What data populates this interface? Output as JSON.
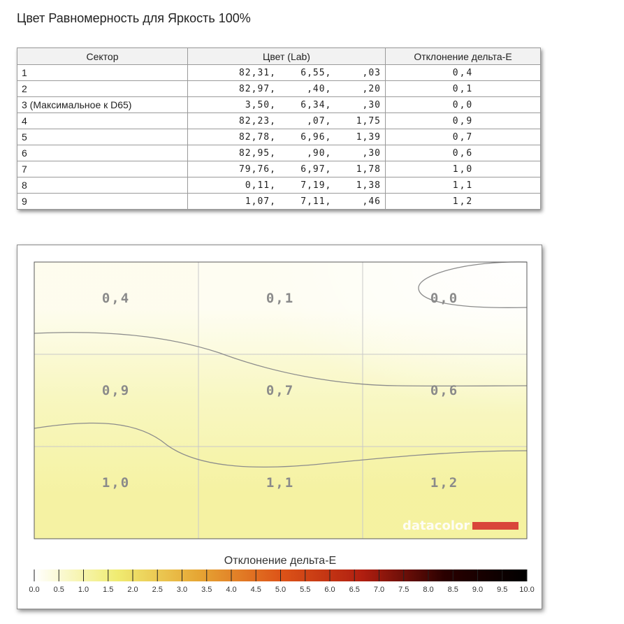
{
  "page": {
    "title": "Цвет Равномерность для Яркость 100%"
  },
  "table": {
    "headers": [
      "Сектор",
      "Цвет (Lab)",
      "Отклонение дельта-E"
    ],
    "rows": [
      {
        "sector": "1",
        "lab": "82,31,    6,55,     ,03",
        "delta_e": "0,4"
      },
      {
        "sector": "2",
        "lab": "82,97,     ,40,     ,20",
        "delta_e": "0,1"
      },
      {
        "sector": "3 (Максимальное к D65)",
        "lab": "3,50,    6,34,     ,30",
        "delta_e": "0,0"
      },
      {
        "sector": "4",
        "lab": "82,23,     ,07,    1,75",
        "delta_e": "0,9"
      },
      {
        "sector": "5",
        "lab": "82,78,    6,96,    1,39",
        "delta_e": "0,7"
      },
      {
        "sector": "6",
        "lab": "82,95,     ,90,     ,30",
        "delta_e": "0,6"
      },
      {
        "sector": "7",
        "lab": "79,76,    6,97,    1,78",
        "delta_e": "1,0"
      },
      {
        "sector": "8",
        "lab": "0,11,    7,19,    1,38",
        "delta_e": "1,1"
      },
      {
        "sector": "9",
        "lab": "1,07,    7,11,     ,46",
        "delta_e": "1,2"
      }
    ]
  },
  "chart_data": {
    "type": "heatmap",
    "grid": {
      "rows": 3,
      "cols": 3
    },
    "values": [
      [
        0.4,
        0.1,
        0.0
      ],
      [
        0.9,
        0.7,
        0.6
      ],
      [
        1.0,
        1.1,
        1.2
      ]
    ],
    "cell_labels": [
      [
        "0,4",
        "0,1",
        "0,0"
      ],
      [
        "0,9",
        "0,7",
        "0,6"
      ],
      [
        "1,0",
        "1,1",
        "1,2"
      ]
    ],
    "legend_title": "Отклонение дельта-E",
    "scale_ticks": [
      "0.0",
      "0.5",
      "1.0",
      "1.5",
      "2.0",
      "2.5",
      "3.0",
      "3.5",
      "4.0",
      "4.5",
      "5.0",
      "5.5",
      "6.0",
      "6.5",
      "7.0",
      "7.5",
      "8.0",
      "8.5",
      "9.0",
      "9.5",
      "10.0"
    ],
    "scale_range": [
      0,
      10
    ],
    "scale_colors": [
      "#ffffff",
      "#f0ec72",
      "#e6a634",
      "#dd5418",
      "#b01e10",
      "#2a0000",
      "#000000"
    ],
    "contours": [
      0.5,
      1.0
    ],
    "watermark": "datacolor",
    "watermark_bar_color": "#d9463a",
    "grid_line_color": "#c9c9c9",
    "contour_color": "#8c8c8c"
  }
}
